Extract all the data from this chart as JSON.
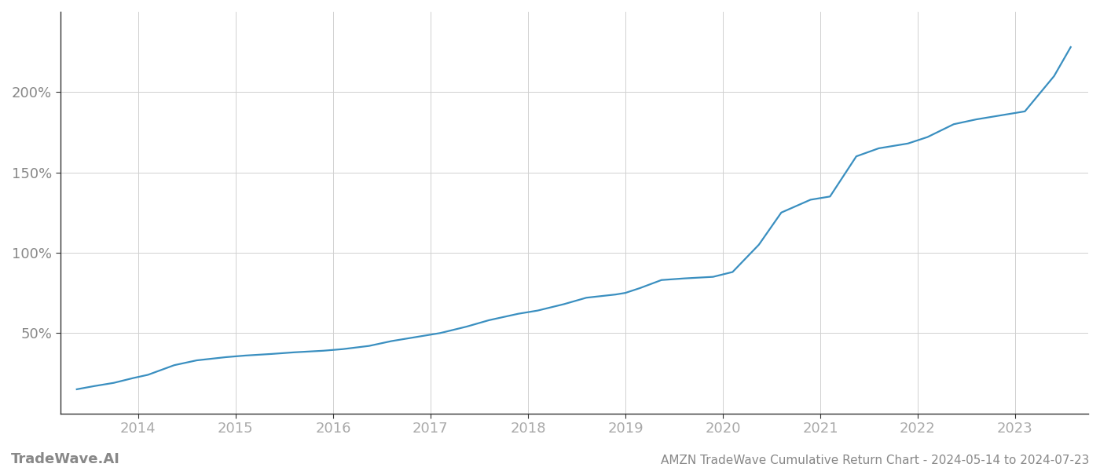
{
  "title": "AMZN TradeWave Cumulative Return Chart - 2024-05-14 to 2024-07-23",
  "watermark": "TradeWave.AI",
  "line_color": "#3a8fc0",
  "background_color": "#ffffff",
  "grid_color": "#d0d0d0",
  "x_years": [
    2014,
    2015,
    2016,
    2017,
    2018,
    2019,
    2020,
    2021,
    2022,
    2023
  ],
  "x_data": [
    2013.37,
    2013.55,
    2013.75,
    2013.95,
    2014.1,
    2014.37,
    2014.6,
    2014.9,
    2015.1,
    2015.37,
    2015.6,
    2015.9,
    2016.1,
    2016.37,
    2016.6,
    2016.9,
    2017.1,
    2017.37,
    2017.6,
    2017.9,
    2018.1,
    2018.37,
    2018.6,
    2018.9,
    2019.0,
    2019.15,
    2019.37,
    2019.6,
    2019.9,
    2020.1,
    2020.37,
    2020.6,
    2020.9,
    2021.1,
    2021.37,
    2021.6,
    2021.9,
    2022.1,
    2022.37,
    2022.6,
    2022.9,
    2023.1,
    2023.4,
    2023.57
  ],
  "y_data": [
    15,
    17,
    19,
    22,
    24,
    30,
    33,
    35,
    36,
    37,
    38,
    39,
    40,
    42,
    45,
    48,
    50,
    54,
    58,
    62,
    64,
    68,
    72,
    74,
    75,
    78,
    83,
    84,
    85,
    88,
    105,
    125,
    133,
    135,
    160,
    165,
    168,
    172,
    180,
    183,
    186,
    188,
    210,
    228
  ],
  "yticks": [
    50,
    100,
    150,
    200
  ],
  "ylim": [
    0,
    250
  ],
  "xlim": [
    2013.2,
    2023.75
  ],
  "xlabel_color": "#aaaaaa",
  "ylabel_color": "#888888",
  "title_color": "#888888",
  "watermark_color": "#888888",
  "spine_color": "#333333",
  "tick_label_fontsize": 13,
  "title_fontsize": 11,
  "watermark_fontsize": 13,
  "line_width": 1.6
}
